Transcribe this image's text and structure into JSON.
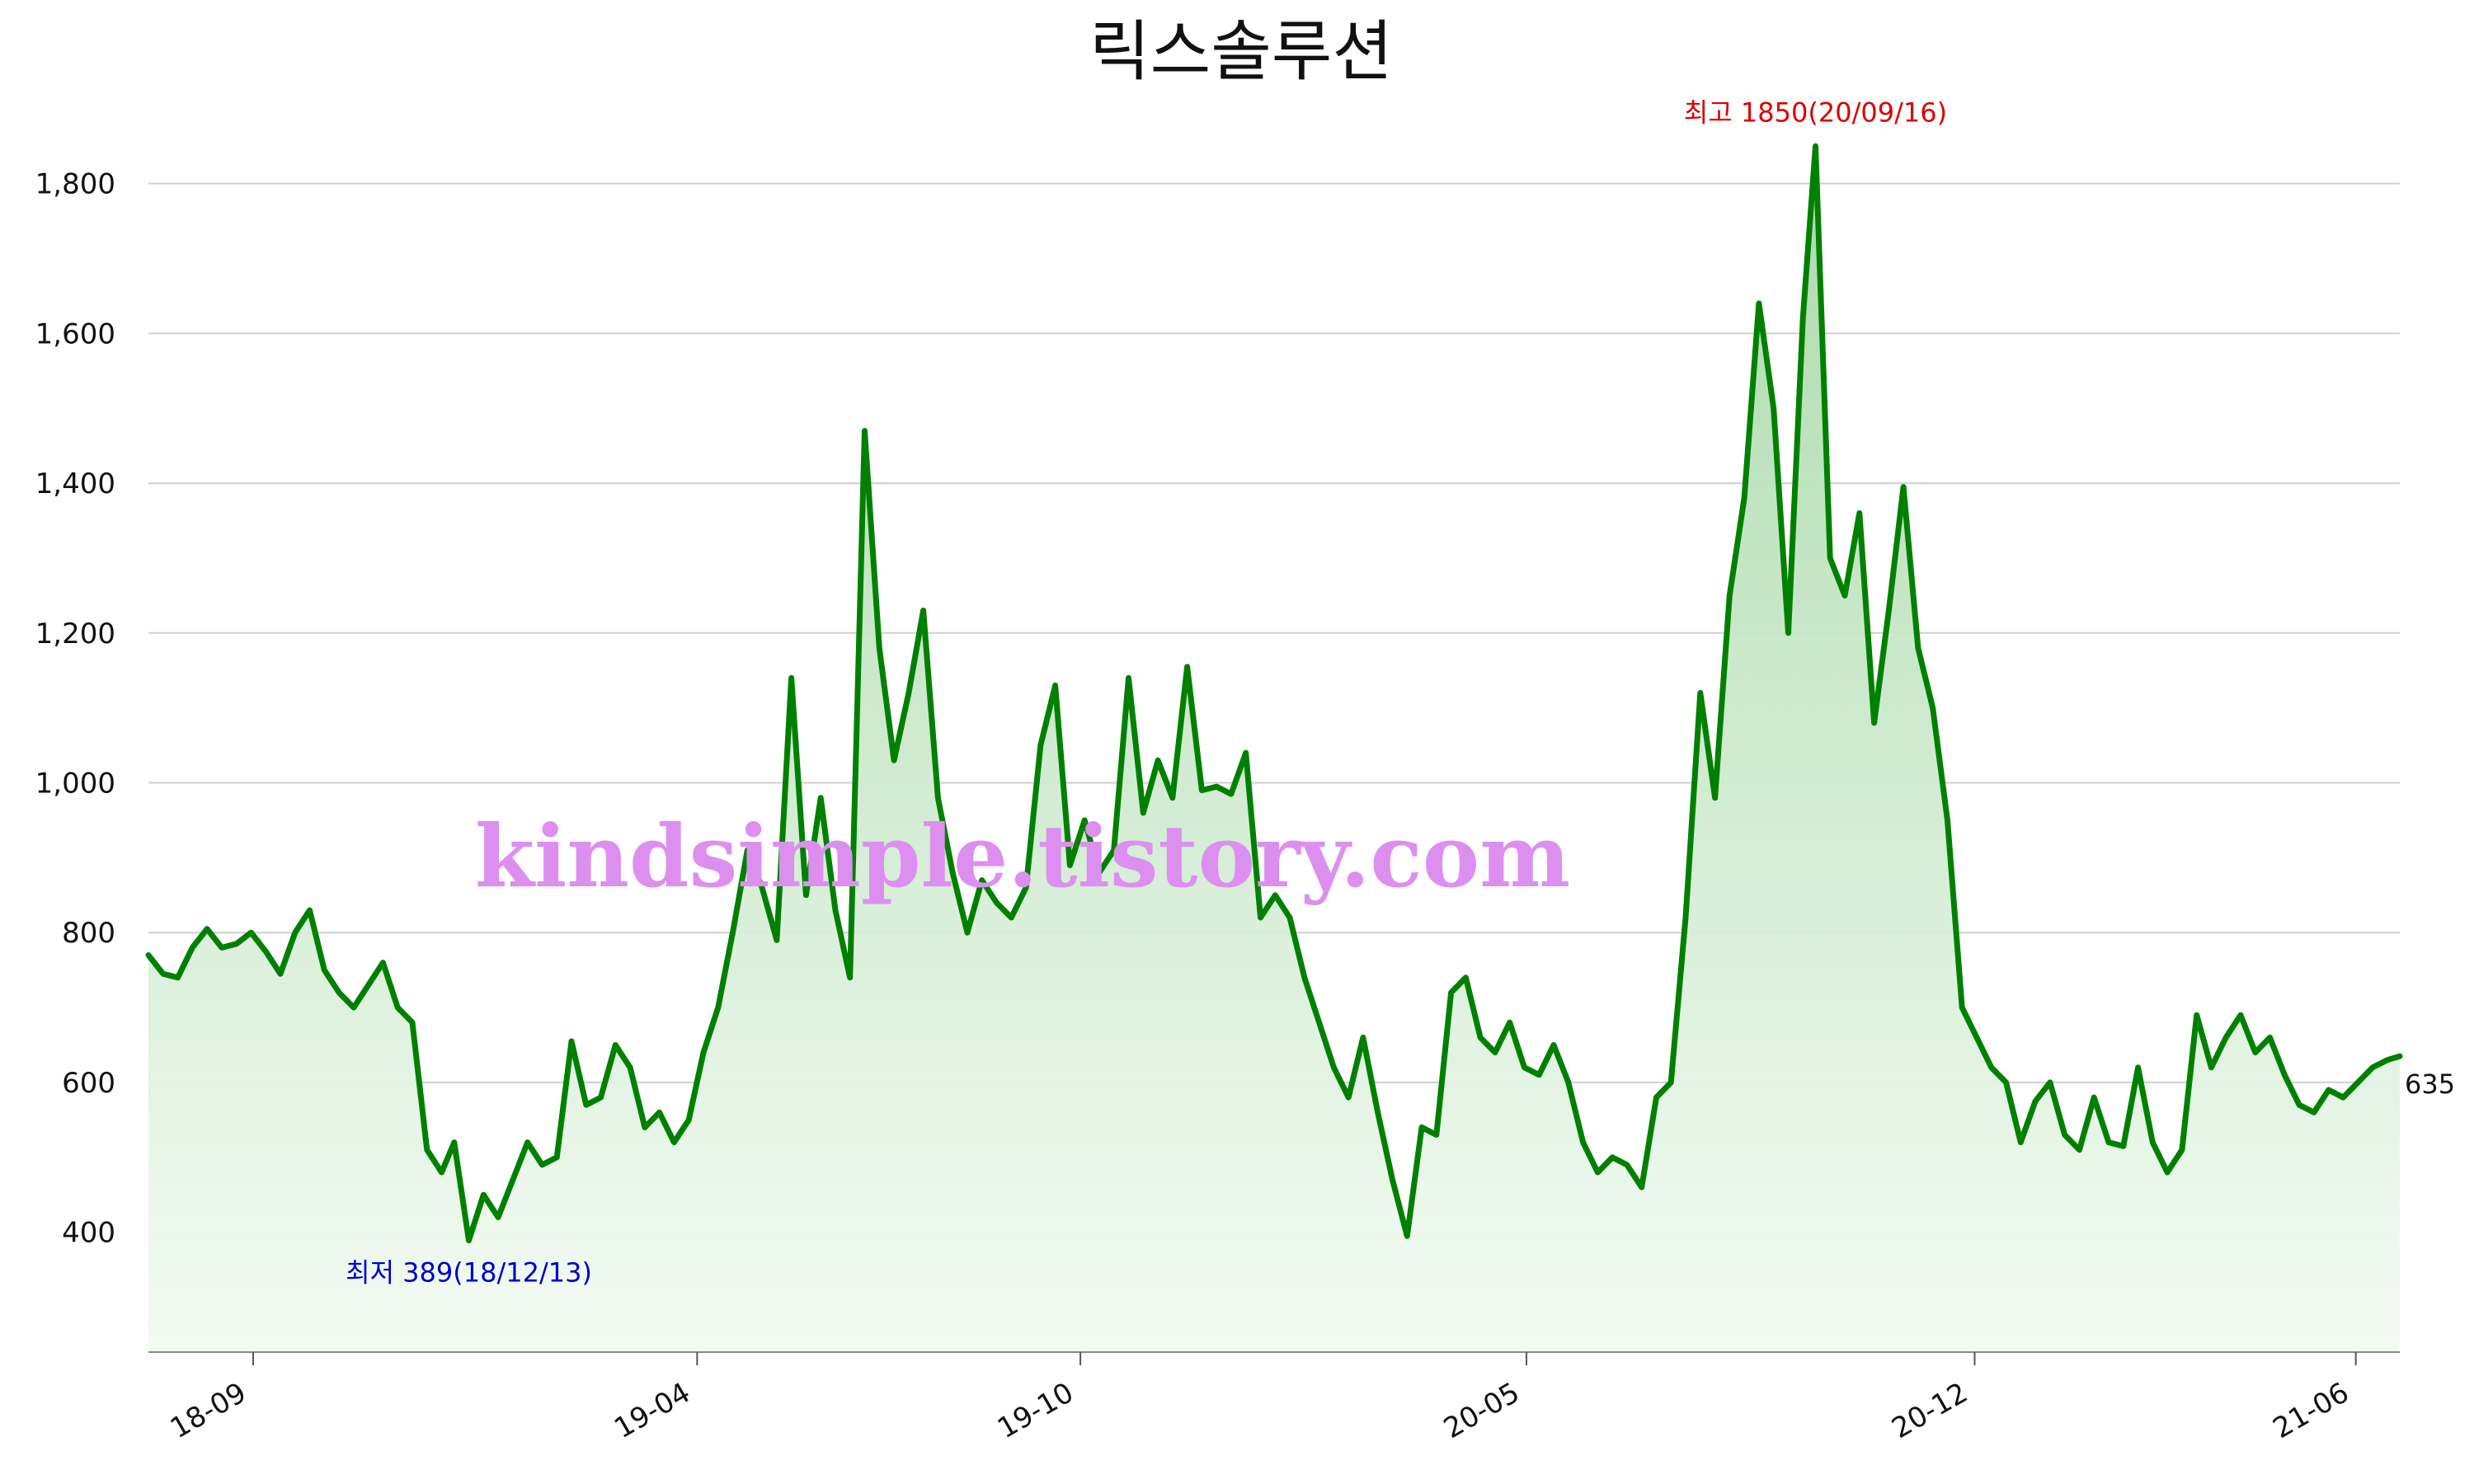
{
  "chart_data": {
    "type": "area",
    "title": "릭스솔루션",
    "xlabel": "",
    "ylabel": "",
    "ylim": [
      240,
      1880
    ],
    "x_range": [
      "2018-07-13",
      "2021-06-22"
    ],
    "yticks": [
      400,
      600,
      800,
      1000,
      1200,
      1400,
      1600,
      1800
    ],
    "ytick_labels": [
      "400",
      "600",
      "800",
      "1,000",
      "1,200",
      "1,400",
      "1,600",
      "1,800"
    ],
    "xticks": [
      {
        "date": "2018-09-01",
        "label": "18-09"
      },
      {
        "date": "2019-04-01",
        "label": "19-04"
      },
      {
        "date": "2019-10-01",
        "label": "19-10"
      },
      {
        "date": "2020-05-01",
        "label": "20-05"
      },
      {
        "date": "2020-12-01",
        "label": "20-12"
      },
      {
        "date": "2021-06-01",
        "label": "21-06"
      }
    ],
    "grid": true,
    "colors": {
      "line": "#008000",
      "fill_top": "#a8d8a8",
      "fill_bottom": "#f3fbf3",
      "max_label": "#dd0000",
      "min_label": "#0000cc"
    },
    "annotations": {
      "max": {
        "date": "2020-09-16",
        "value": 1850,
        "label": "최고 1850(20/09/16)"
      },
      "min": {
        "date": "2018-12-13",
        "value": 389,
        "label": "최저 389(18/12/13)"
      },
      "last": {
        "date": "2021-06-22",
        "value": 635,
        "label": "635"
      }
    },
    "watermark": "kindsimple.tistory.com",
    "series": [
      {
        "values": [
          [
            "2018-07-13",
            770
          ],
          [
            "2018-07-20",
            745
          ],
          [
            "2018-07-27",
            740
          ],
          [
            "2018-08-03",
            780
          ],
          [
            "2018-08-10",
            805
          ],
          [
            "2018-08-17",
            780
          ],
          [
            "2018-08-24",
            785
          ],
          [
            "2018-08-31",
            800
          ],
          [
            "2018-09-07",
            775
          ],
          [
            "2018-09-14",
            745
          ],
          [
            "2018-09-21",
            800
          ],
          [
            "2018-09-28",
            830
          ],
          [
            "2018-10-05",
            750
          ],
          [
            "2018-10-12",
            720
          ],
          [
            "2018-10-19",
            700
          ],
          [
            "2018-10-26",
            730
          ],
          [
            "2018-11-02",
            760
          ],
          [
            "2018-11-09",
            700
          ],
          [
            "2018-11-16",
            680
          ],
          [
            "2018-11-23",
            510
          ],
          [
            "2018-11-30",
            480
          ],
          [
            "2018-12-06",
            520
          ],
          [
            "2018-12-13",
            389
          ],
          [
            "2018-12-20",
            450
          ],
          [
            "2018-12-27",
            420
          ],
          [
            "2019-01-03",
            470
          ],
          [
            "2019-01-10",
            520
          ],
          [
            "2019-01-17",
            490
          ],
          [
            "2019-01-24",
            500
          ],
          [
            "2019-01-31",
            655
          ],
          [
            "2019-02-07",
            570
          ],
          [
            "2019-02-14",
            580
          ],
          [
            "2019-02-21",
            650
          ],
          [
            "2019-02-28",
            620
          ],
          [
            "2019-03-07",
            540
          ],
          [
            "2019-03-14",
            560
          ],
          [
            "2019-03-21",
            520
          ],
          [
            "2019-03-28",
            550
          ],
          [
            "2019-04-04",
            640
          ],
          [
            "2019-04-11",
            700
          ],
          [
            "2019-04-18",
            800
          ],
          [
            "2019-04-25",
            910
          ],
          [
            "2019-05-02",
            860
          ],
          [
            "2019-05-09",
            790
          ],
          [
            "2019-05-16",
            1140
          ],
          [
            "2019-05-23",
            850
          ],
          [
            "2019-05-30",
            980
          ],
          [
            "2019-06-06",
            830
          ],
          [
            "2019-06-13",
            740
          ],
          [
            "2019-06-20",
            1470
          ],
          [
            "2019-06-27",
            1180
          ],
          [
            "2019-07-04",
            1030
          ],
          [
            "2019-07-11",
            1120
          ],
          [
            "2019-07-18",
            1230
          ],
          [
            "2019-07-25",
            980
          ],
          [
            "2019-08-01",
            880
          ],
          [
            "2019-08-08",
            800
          ],
          [
            "2019-08-15",
            870
          ],
          [
            "2019-08-22",
            840
          ],
          [
            "2019-08-29",
            820
          ],
          [
            "2019-09-05",
            860
          ],
          [
            "2019-09-12",
            1050
          ],
          [
            "2019-09-19",
            1130
          ],
          [
            "2019-09-26",
            890
          ],
          [
            "2019-10-03",
            950
          ],
          [
            "2019-10-10",
            880
          ],
          [
            "2019-10-17",
            910
          ],
          [
            "2019-10-24",
            1140
          ],
          [
            "2019-10-31",
            960
          ],
          [
            "2019-11-07",
            1030
          ],
          [
            "2019-11-14",
            980
          ],
          [
            "2019-11-21",
            1155
          ],
          [
            "2019-11-28",
            990
          ],
          [
            "2019-12-05",
            995
          ],
          [
            "2019-12-12",
            985
          ],
          [
            "2019-12-19",
            1040
          ],
          [
            "2019-12-26",
            820
          ],
          [
            "2020-01-02",
            850
          ],
          [
            "2020-01-09",
            820
          ],
          [
            "2020-01-16",
            740
          ],
          [
            "2020-01-23",
            680
          ],
          [
            "2020-01-30",
            620
          ],
          [
            "2020-02-06",
            580
          ],
          [
            "2020-02-13",
            660
          ],
          [
            "2020-02-20",
            560
          ],
          [
            "2020-02-27",
            470
          ],
          [
            "2020-03-05",
            395
          ],
          [
            "2020-03-12",
            540
          ],
          [
            "2020-03-19",
            530
          ],
          [
            "2020-03-26",
            720
          ],
          [
            "2020-04-02",
            740
          ],
          [
            "2020-04-09",
            660
          ],
          [
            "2020-04-16",
            640
          ],
          [
            "2020-04-23",
            680
          ],
          [
            "2020-04-30",
            620
          ],
          [
            "2020-05-07",
            610
          ],
          [
            "2020-05-14",
            650
          ],
          [
            "2020-05-21",
            600
          ],
          [
            "2020-05-28",
            520
          ],
          [
            "2020-06-04",
            480
          ],
          [
            "2020-06-11",
            500
          ],
          [
            "2020-06-18",
            490
          ],
          [
            "2020-06-25",
            460
          ],
          [
            "2020-07-02",
            580
          ],
          [
            "2020-07-09",
            600
          ],
          [
            "2020-07-16",
            820
          ],
          [
            "2020-07-23",
            1120
          ],
          [
            "2020-07-30",
            980
          ],
          [
            "2020-08-06",
            1250
          ],
          [
            "2020-08-13",
            1380
          ],
          [
            "2020-08-20",
            1640
          ],
          [
            "2020-08-27",
            1500
          ],
          [
            "2020-09-03",
            1200
          ],
          [
            "2020-09-10",
            1620
          ],
          [
            "2020-09-16",
            1850
          ],
          [
            "2020-09-23",
            1300
          ],
          [
            "2020-09-30",
            1250
          ],
          [
            "2020-10-07",
            1360
          ],
          [
            "2020-10-14",
            1080
          ],
          [
            "2020-10-21",
            1230
          ],
          [
            "2020-10-28",
            1395
          ],
          [
            "2020-11-04",
            1180
          ],
          [
            "2020-11-11",
            1100
          ],
          [
            "2020-11-18",
            950
          ],
          [
            "2020-11-25",
            700
          ],
          [
            "2020-12-02",
            660
          ],
          [
            "2020-12-09",
            620
          ],
          [
            "2020-12-16",
            600
          ],
          [
            "2020-12-23",
            520
          ],
          [
            "2020-12-30",
            575
          ],
          [
            "2021-01-06",
            600
          ],
          [
            "2021-01-13",
            530
          ],
          [
            "2021-01-20",
            510
          ],
          [
            "2021-01-27",
            580
          ],
          [
            "2021-02-03",
            520
          ],
          [
            "2021-02-10",
            515
          ],
          [
            "2021-02-17",
            620
          ],
          [
            "2021-02-24",
            520
          ],
          [
            "2021-03-03",
            480
          ],
          [
            "2021-03-10",
            510
          ],
          [
            "2021-03-17",
            690
          ],
          [
            "2021-03-24",
            620
          ],
          [
            "2021-03-31",
            660
          ],
          [
            "2021-04-07",
            690
          ],
          [
            "2021-04-14",
            640
          ],
          [
            "2021-04-21",
            660
          ],
          [
            "2021-04-28",
            610
          ],
          [
            "2021-05-05",
            570
          ],
          [
            "2021-05-12",
            560
          ],
          [
            "2021-05-19",
            590
          ],
          [
            "2021-05-26",
            580
          ],
          [
            "2021-06-02",
            600
          ],
          [
            "2021-06-09",
            620
          ],
          [
            "2021-06-16",
            630
          ],
          [
            "2021-06-22",
            635
          ]
        ]
      }
    ]
  }
}
